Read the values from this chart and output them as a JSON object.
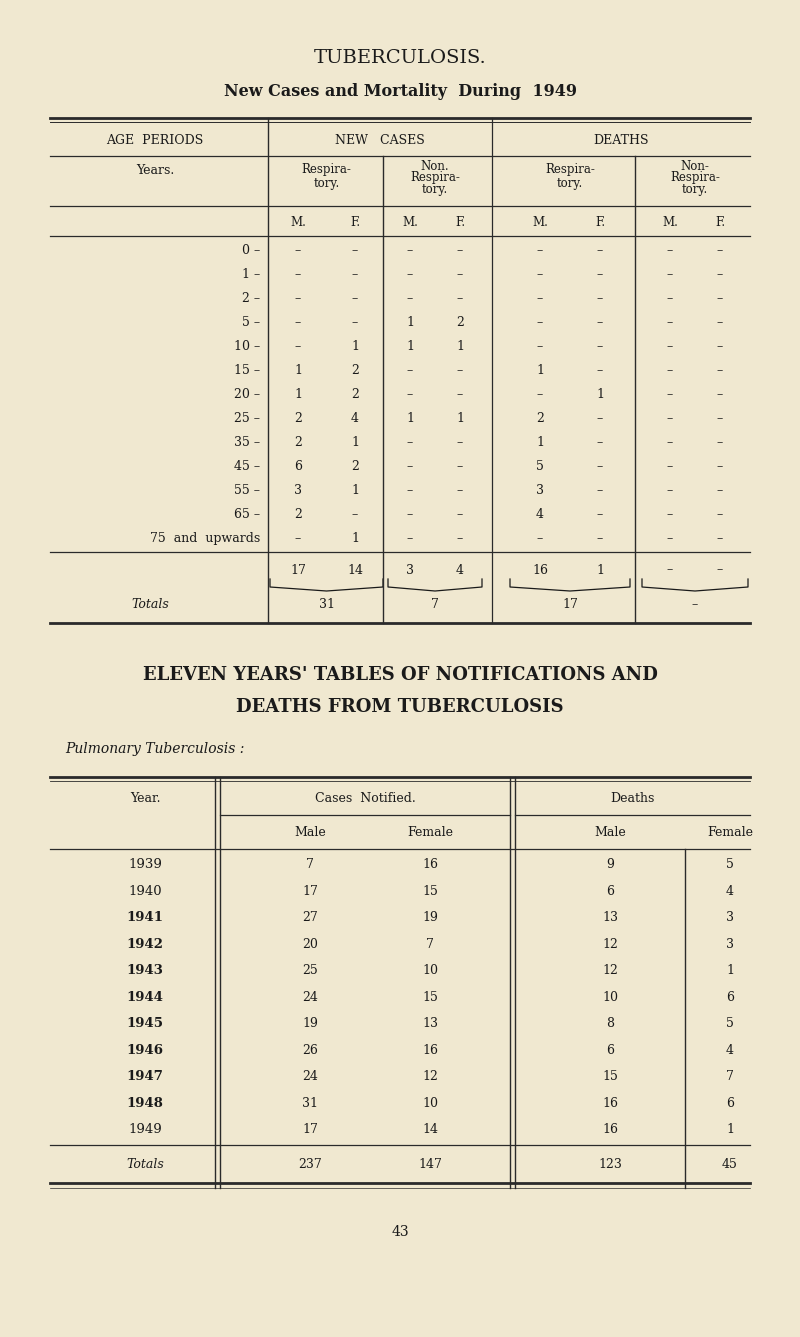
{
  "title": "TUBERCULOSIS.",
  "subtitle": "New Cases and Mortality  During  1949",
  "bg_color": "#f0e8d0",
  "text_color": "#1a1a1a",
  "table1_age_periods": [
    "0 –",
    "1 –",
    "2 –",
    "5 –",
    "10 –",
    "15 –",
    "20 –",
    "25 –",
    "35 –",
    "45 –",
    "55 –",
    "65 –",
    "75  and  upwards"
  ],
  "table1_data": [
    [
      "–",
      "–",
      "–",
      "–",
      "–",
      "–",
      "–",
      "–"
    ],
    [
      "–",
      "–",
      "–",
      "–",
      "–",
      "–",
      "–",
      "–"
    ],
    [
      "–",
      "–",
      "–",
      "–",
      "–",
      "–",
      "–",
      "–"
    ],
    [
      "–",
      "–",
      "1",
      "2",
      "–",
      "–",
      "–",
      "–"
    ],
    [
      "–",
      "1",
      "1",
      "1",
      "–",
      "–",
      "–",
      "–"
    ],
    [
      "1",
      "2",
      "–",
      "–",
      "1",
      "–",
      "–",
      "–"
    ],
    [
      "1",
      "2",
      "–",
      "–",
      "–",
      "1",
      "–",
      "–"
    ],
    [
      "2",
      "4",
      "1",
      "1",
      "2",
      "–",
      "–",
      "–"
    ],
    [
      "2",
      "1",
      "–",
      "–",
      "1",
      "–",
      "–",
      "–"
    ],
    [
      "6",
      "2",
      "–",
      "–",
      "5",
      "–",
      "–",
      "–"
    ],
    [
      "3",
      "1",
      "–",
      "–",
      "3",
      "–",
      "–",
      "–"
    ],
    [
      "2",
      "–",
      "–",
      "–",
      "4",
      "–",
      "–",
      "–"
    ],
    [
      "–",
      "1",
      "–",
      "–",
      "–",
      "–",
      "–",
      "–"
    ]
  ],
  "table1_subtotals": [
    "17",
    "14",
    "3",
    "4",
    "16",
    "1",
    "–",
    "–"
  ],
  "table1_totals": [
    "31",
    "7",
    "17",
    "–"
  ],
  "table2_title1": "ELEVEN YEARS' TABLES OF NOTIFICATIONS AND",
  "table2_title2": "DEATHS FROM TUBERCULOSIS",
  "table2_subtitle": "Pulmonary Tuberculosis :",
  "table2_years": [
    "1939",
    "1940",
    "1941",
    "1942",
    "1943",
    "1944",
    "1945",
    "1946",
    "1947",
    "1948",
    "1949"
  ],
  "table2_bold_years": [
    "1941",
    "1942",
    "1943",
    "1944",
    "1945",
    "1946",
    "1947",
    "1948"
  ],
  "table2_cases_male": [
    7,
    17,
    27,
    20,
    25,
    24,
    19,
    26,
    24,
    31,
    17
  ],
  "table2_cases_female": [
    16,
    15,
    19,
    7,
    10,
    15,
    13,
    16,
    12,
    10,
    14
  ],
  "table2_deaths_male": [
    9,
    6,
    13,
    12,
    12,
    10,
    8,
    6,
    15,
    16,
    16
  ],
  "table2_deaths_female": [
    5,
    4,
    3,
    3,
    1,
    6,
    5,
    4,
    7,
    6,
    1
  ],
  "table2_total_cases_male": 237,
  "table2_total_cases_female": 147,
  "table2_total_deaths_male": 123,
  "table2_total_deaths_female": 45,
  "page_number": "43",
  "fig_w": 8.0,
  "fig_h": 13.37,
  "dpi": 100
}
